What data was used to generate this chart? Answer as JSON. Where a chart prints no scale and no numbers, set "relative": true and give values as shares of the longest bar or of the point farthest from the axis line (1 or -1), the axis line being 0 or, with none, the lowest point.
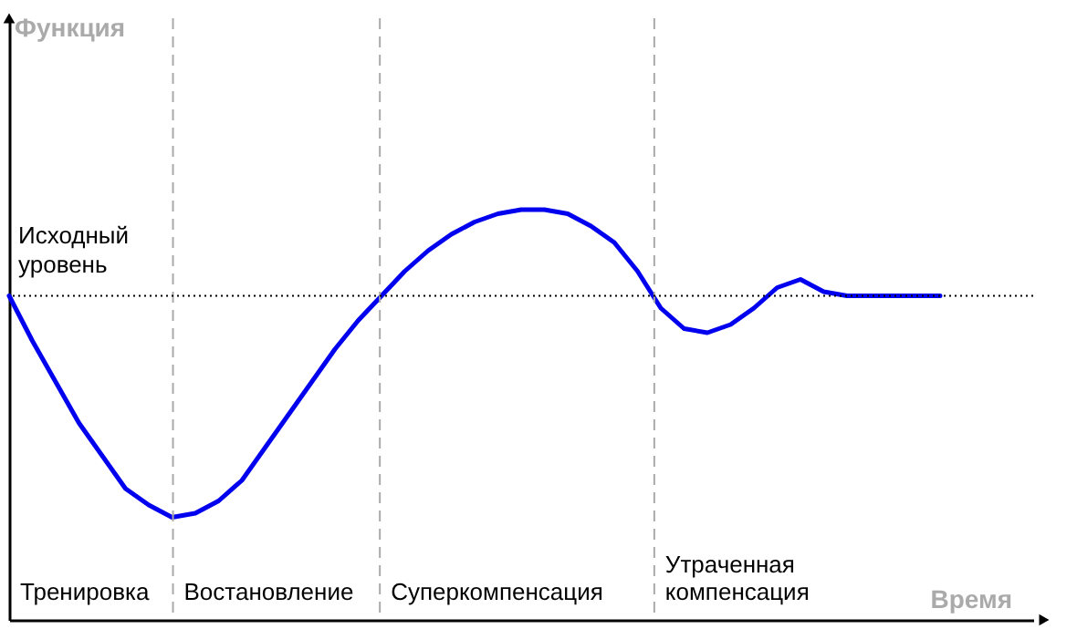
{
  "chart_data": {
    "type": "line",
    "relative": true,
    "xlabel": "Время",
    "line_style": "solid",
    "categories": [
      null,
      null,
      null,
      null,
      null,
      null,
      null,
      null,
      null,
      null,
      null,
      null,
      null,
      null,
      null,
      null,
      null,
      null,
      null,
      null,
      null,
      null,
      null,
      null,
      null,
      null,
      null,
      null,
      null,
      null,
      null,
      null,
      null,
      null,
      null,
      null,
      null,
      null,
      null,
      null,
      null,
      null,
      null,
      null,
      null
    ],
    "series": [
      {
        "color": "#0000ee",
        "values": [
          0.79,
          0.68,
          0.58,
          0.48,
          0.4,
          0.32,
          0.28,
          0.25,
          0.26,
          0.29,
          0.34,
          0.42,
          0.5,
          0.58,
          0.66,
          0.73,
          0.79,
          0.85,
          0.9,
          0.94,
          0.97,
          0.99,
          1.0,
          1.0,
          0.99,
          0.96,
          0.92,
          0.85,
          0.76,
          0.71,
          0.7,
          0.72,
          0.76,
          0.81,
          0.83,
          0.8,
          0.79,
          0.79,
          0.79,
          0.79,
          0.79,
          null,
          null,
          null,
          null
        ]
      }
    ],
    "ref_lines": [
      {
        "axis": "y",
        "value": 0.79,
        "label": "Исходный уровень",
        "line_style": "dotted",
        "color": "#000000"
      }
    ],
    "annotations": [
      "Функция",
      "Тренировка",
      "Востановление",
      "Суперкомпенсация",
      "Утраченная компенсация"
    ]
  }
}
